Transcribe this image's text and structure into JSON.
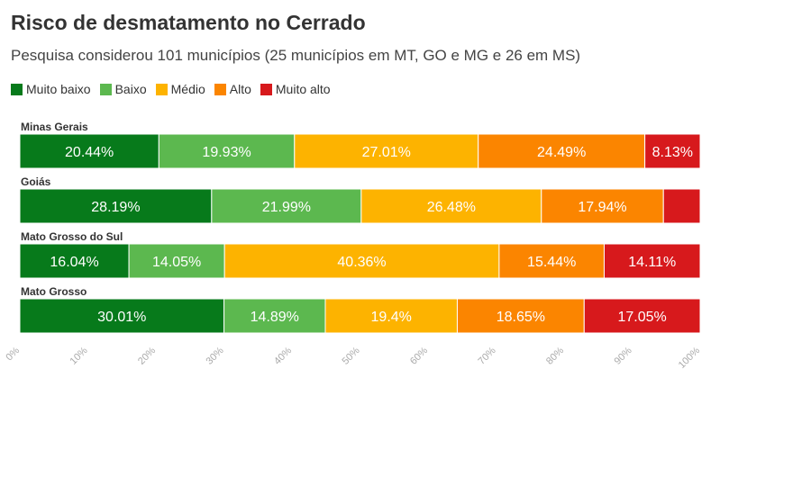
{
  "title": "Risco de desmatamento no Cerrado",
  "subtitle": "Pesquisa considerou 101 municípios (25 municípios em MT, GO e MG e 26 em MS)",
  "chart_data": {
    "type": "bar",
    "orientation": "horizontal",
    "stacked": true,
    "categories": [
      "Minas Gerais",
      "Goiás",
      "Mato Grosso do Sul",
      "Mato Grosso"
    ],
    "series": [
      {
        "name": "Muito baixo",
        "color": "#077a1b",
        "values": [
          20.44,
          28.19,
          16.04,
          30.01
        ],
        "labels": [
          "20.44%",
          "28.19%",
          "16.04%",
          "30.01%"
        ]
      },
      {
        "name": "Baixo",
        "color": "#5cb84f",
        "values": [
          19.93,
          21.99,
          14.05,
          14.89
        ],
        "labels": [
          "19.93%",
          "21.99%",
          "14.05%",
          "14.89%"
        ]
      },
      {
        "name": "Médio",
        "color": "#fdb300",
        "values": [
          27.01,
          26.48,
          40.36,
          19.4
        ],
        "labels": [
          "27.01%",
          "26.48%",
          "40.36%",
          "19.4%"
        ]
      },
      {
        "name": "Alto",
        "color": "#fb8500",
        "values": [
          24.49,
          17.94,
          15.44,
          18.65
        ],
        "labels": [
          "24.49%",
          "17.94%",
          "15.44%",
          "18.65%"
        ]
      },
      {
        "name": "Muito alto",
        "color": "#d7191c",
        "values": [
          8.13,
          5.4,
          14.11,
          17.05
        ],
        "labels": [
          "8.13%",
          "",
          "14.11%",
          "17.05%"
        ]
      }
    ],
    "xlim": [
      0,
      100
    ],
    "xticks": [
      "0%",
      "10%",
      "20%",
      "30%",
      "40%",
      "50%",
      "60%",
      "70%",
      "80%",
      "90%",
      "100%"
    ],
    "grid": false,
    "legend_position": "top-left"
  }
}
